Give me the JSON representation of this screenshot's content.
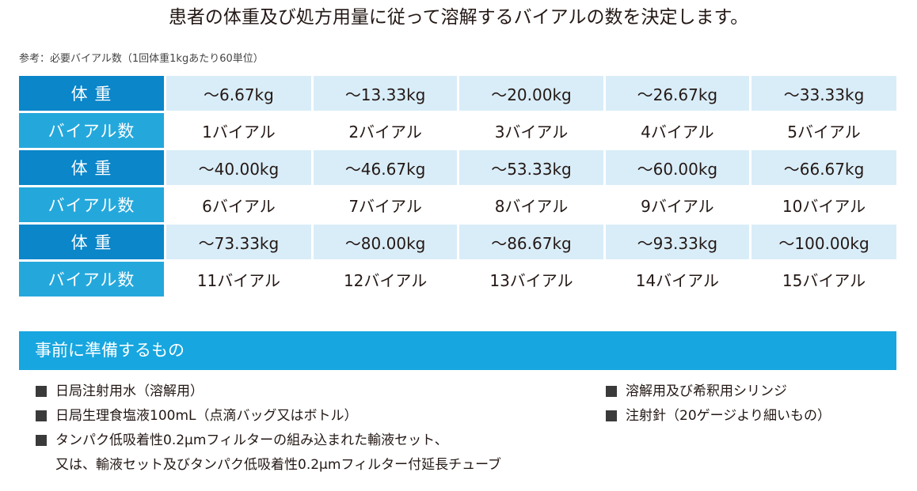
{
  "headline": "患者の体重及び処方用量に従って溶解するバイアルの数を決定します。",
  "note": "参考：必要バイアル数（1回体重1kgあたり60単位）",
  "dose_table": {
    "weight_label": "体 重",
    "vial_label": "バイアル数",
    "rows": [
      {
        "weights": [
          "～6.67kg",
          "～13.33kg",
          "～20.00kg",
          "～26.67kg",
          "～33.33kg"
        ],
        "vials": [
          "1バイアル",
          "2バイアル",
          "3バイアル",
          "4バイアル",
          "5バイアル"
        ]
      },
      {
        "weights": [
          "～40.00kg",
          "～46.67kg",
          "～53.33kg",
          "～60.00kg",
          "～66.67kg"
        ],
        "vials": [
          "6バイアル",
          "7バイアル",
          "8バイアル",
          "9バイアル",
          "10バイアル"
        ]
      },
      {
        "weights": [
          "～73.33kg",
          "～80.00kg",
          "～86.67kg",
          "～93.33kg",
          "～100.00kg"
        ],
        "vials": [
          "11バイアル",
          "12バイアル",
          "13バイアル",
          "14バイアル",
          "15バイアル"
        ]
      }
    ]
  },
  "preparation": {
    "title": "事前に準備するもの",
    "left_items": [
      "日局注射用水（溶解用）",
      "日局生理食塩液100mL（点滴バッグ又はボトル）",
      "タンパク低吸着性0.2μmフィルターの組み込まれた輸液セット、"
    ],
    "left_item3_line2": "又は、輸液セット及びタンパク低吸着性0.2μmフィルター付延長チューブ",
    "right_items": [
      "溶解用及び希釈用シリンジ",
      "注射針（20ゲージより細いもの）"
    ]
  },
  "colors": {
    "weight_label_bg": "#0a86c9",
    "vial_label_bg": "#24a8dc",
    "weight_cell_bg": "#d9edf8",
    "section_bar": "#17a6df"
  }
}
